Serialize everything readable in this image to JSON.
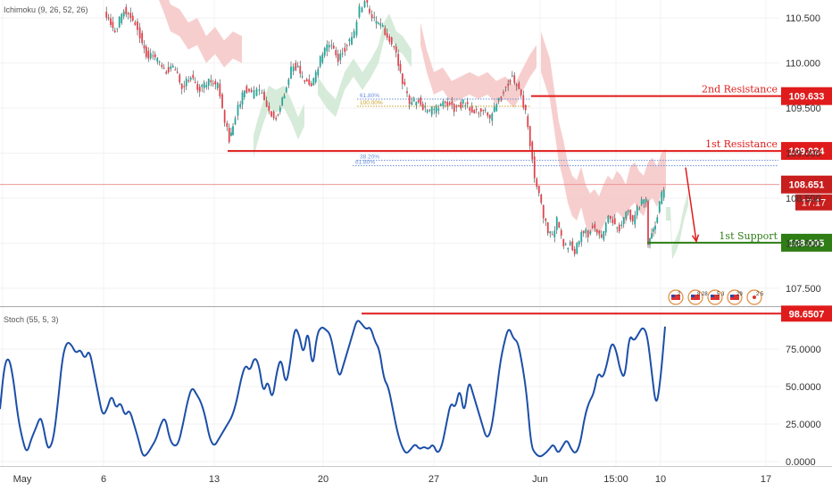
{
  "indicators": {
    "ichimoku_label": "Ichimoku (9, 26, 52, 26)",
    "stoch_label": "Stoch (55, 5, 3)"
  },
  "colors": {
    "up_candle": "#26a69a",
    "down_candle": "#e0454f",
    "candle_wick": "#3a3a3a",
    "cloud_bear": "#f6c6c6",
    "cloud_bull": "#cfe8d2",
    "resistance": "#e01b1b",
    "support": "#2e7d15",
    "stoch_line": "#1c4fa8",
    "price_line": "#e88a8a"
  },
  "chart_data": [
    {
      "type": "line",
      "name": "price",
      "ylim": [
        107.3,
        110.7
      ],
      "y_ticks": [
        107.5,
        108.0,
        108.5,
        109.0,
        109.5,
        110.0,
        110.5
      ],
      "y_tick_labels": [
        "107.500",
        "108.000",
        "108.500",
        "109.000",
        "109.500",
        "110.000",
        "110.500"
      ],
      "x_ticks": [
        "May",
        "6",
        "13",
        "20",
        "27",
        "Jun",
        "15:00",
        "10",
        "17"
      ],
      "x_tick_values": [
        3,
        116,
        240,
        362,
        486,
        605,
        690,
        740,
        858
      ],
      "close_path": [
        [
          118,
          110.55
        ],
        [
          130,
          110.35
        ],
        [
          140,
          110.6
        ],
        [
          150,
          110.5
        ],
        [
          158,
          110.3
        ],
        [
          165,
          110.1
        ],
        [
          175,
          110.05
        ],
        [
          185,
          109.9
        ],
        [
          195,
          109.95
        ],
        [
          205,
          109.75
        ],
        [
          215,
          109.85
        ],
        [
          225,
          109.7
        ],
        [
          235,
          109.8
        ],
        [
          245,
          109.75
        ],
        [
          253,
          109.35
        ],
        [
          258,
          109.15
        ],
        [
          262,
          109.3
        ],
        [
          268,
          109.5
        ],
        [
          275,
          109.7
        ],
        [
          283,
          109.65
        ],
        [
          292,
          109.7
        ],
        [
          300,
          109.55
        ],
        [
          308,
          109.35
        ],
        [
          315,
          109.5
        ],
        [
          322,
          109.75
        ],
        [
          330,
          110.0
        ],
        [
          340,
          109.85
        ],
        [
          350,
          109.75
        ],
        [
          360,
          110.05
        ],
        [
          370,
          110.2
        ],
        [
          380,
          110.05
        ],
        [
          390,
          110.2
        ],
        [
          398,
          110.35
        ],
        [
          404,
          110.6
        ],
        [
          410,
          110.7
        ],
        [
          418,
          110.5
        ],
        [
          425,
          110.45
        ],
        [
          435,
          110.3
        ],
        [
          445,
          110.1
        ],
        [
          452,
          109.8
        ],
        [
          460,
          109.55
        ],
        [
          470,
          109.6
        ],
        [
          480,
          109.45
        ],
        [
          490,
          109.5
        ],
        [
          500,
          109.55
        ],
        [
          510,
          109.5
        ],
        [
          520,
          109.55
        ],
        [
          530,
          109.45
        ],
        [
          540,
          109.5
        ],
        [
          550,
          109.4
        ],
        [
          560,
          109.6
        ],
        [
          568,
          109.75
        ],
        [
          575,
          109.85
        ],
        [
          580,
          109.75
        ],
        [
          585,
          109.6
        ],
        [
          590,
          109.45
        ],
        [
          595,
          109.1
        ],
        [
          600,
          108.75
        ],
        [
          605,
          108.55
        ],
        [
          610,
          108.3
        ],
        [
          615,
          108.15
        ],
        [
          620,
          108.1
        ],
        [
          625,
          108.25
        ],
        [
          630,
          108.05
        ],
        [
          635,
          107.95
        ],
        [
          640,
          108.0
        ],
        [
          645,
          107.92
        ],
        [
          650,
          108.05
        ],
        [
          655,
          108.15
        ],
        [
          660,
          108.1
        ],
        [
          665,
          108.2
        ],
        [
          670,
          108.15
        ],
        [
          675,
          108.05
        ],
        [
          680,
          108.25
        ],
        [
          685,
          108.3
        ],
        [
          690,
          108.2
        ],
        [
          695,
          108.15
        ],
        [
          700,
          108.3
        ],
        [
          705,
          108.35
        ],
        [
          710,
          108.25
        ],
        [
          715,
          108.4
        ],
        [
          720,
          108.45
        ],
        [
          725,
          108.45
        ],
        [
          727,
          108.02
        ],
        [
          731,
          108.1
        ],
        [
          735,
          108.2
        ],
        [
          740,
          108.45
        ],
        [
          745,
          108.62
        ]
      ],
      "annotations": [
        {
          "label": "2nd Resistance",
          "value": "109.633",
          "level": 109.633,
          "x_start": 595,
          "x_end": 875
        },
        {
          "label": "1st Resistance",
          "value": "109.024",
          "level": 109.024,
          "x_start": 255,
          "x_end": 875
        },
        {
          "label": "1st Support",
          "value": "108.005",
          "level": 108.005,
          "x_start": 725,
          "x_end": 875
        }
      ],
      "current_price": {
        "value": "108.651",
        "level": 108.651,
        "countdown": "17:17"
      },
      "fib_levels": [
        {
          "label": "61.80%",
          "level": 109.6,
          "x_start": 400,
          "x_end": 595
        },
        {
          "label": "100.00%",
          "level": 109.52,
          "x_start": 400,
          "x_end": 595
        },
        {
          "label": "38.20%",
          "level": 108.92,
          "x_start": 400,
          "x_end": 872
        },
        {
          "label": "61.80%",
          "level": 108.86,
          "x_start": 395,
          "x_end": 872
        }
      ],
      "projection_arrow": {
        "from": [
          768,
          108.84
        ],
        "to": [
          780,
          108.02
        ]
      }
    },
    {
      "type": "line",
      "name": "stochastic",
      "ylim": [
        -3,
        103
      ],
      "y_ticks": [
        0,
        25,
        50,
        75
      ],
      "y_tick_labels": [
        "0.0000",
        "25.0000",
        "50.0000",
        "75.0000"
      ],
      "x_ticks": [
        "May",
        "6",
        "13",
        "20",
        "27",
        "Jun",
        "15:00",
        "10",
        "17"
      ],
      "x_tick_values": [
        3,
        116,
        240,
        362,
        486,
        605,
        690,
        740,
        858
      ],
      "points": [
        [
          0,
          35
        ],
        [
          5,
          65
        ],
        [
          10,
          70
        ],
        [
          15,
          55
        ],
        [
          20,
          30
        ],
        [
          25,
          15
        ],
        [
          30,
          5
        ],
        [
          35,
          15
        ],
        [
          40,
          22
        ],
        [
          45,
          30
        ],
        [
          48,
          25
        ],
        [
          52,
          12
        ],
        [
          55,
          8
        ],
        [
          60,
          15
        ],
        [
          65,
          40
        ],
        [
          70,
          70
        ],
        [
          75,
          80
        ],
        [
          80,
          78
        ],
        [
          85,
          72
        ],
        [
          90,
          75
        ],
        [
          95,
          68
        ],
        [
          100,
          75
        ],
        [
          105,
          60
        ],
        [
          110,
          45
        ],
        [
          115,
          30
        ],
        [
          120,
          35
        ],
        [
          125,
          45
        ],
        [
          130,
          35
        ],
        [
          135,
          40
        ],
        [
          140,
          30
        ],
        [
          145,
          35
        ],
        [
          150,
          25
        ],
        [
          155,
          15
        ],
        [
          160,
          3
        ],
        [
          165,
          5
        ],
        [
          170,
          10
        ],
        [
          175,
          15
        ],
        [
          180,
          25
        ],
        [
          185,
          30
        ],
        [
          190,
          15
        ],
        [
          195,
          10
        ],
        [
          200,
          12
        ],
        [
          205,
          25
        ],
        [
          210,
          40
        ],
        [
          215,
          50
        ],
        [
          220,
          45
        ],
        [
          225,
          40
        ],
        [
          230,
          30
        ],
        [
          235,
          15
        ],
        [
          240,
          10
        ],
        [
          245,
          15
        ],
        [
          250,
          20
        ],
        [
          255,
          25
        ],
        [
          260,
          30
        ],
        [
          265,
          40
        ],
        [
          270,
          55
        ],
        [
          275,
          65
        ],
        [
          280,
          60
        ],
        [
          285,
          70
        ],
        [
          290,
          65
        ],
        [
          295,
          45
        ],
        [
          300,
          55
        ],
        [
          305,
          40
        ],
        [
          310,
          60
        ],
        [
          315,
          70
        ],
        [
          320,
          50
        ],
        [
          325,
          65
        ],
        [
          330,
          90
        ],
        [
          335,
          85
        ],
        [
          340,
          70
        ],
        [
          345,
          90
        ],
        [
          350,
          60
        ],
        [
          355,
          85
        ],
        [
          360,
          90
        ],
        [
          365,
          88
        ],
        [
          370,
          85
        ],
        [
          375,
          70
        ],
        [
          380,
          55
        ],
        [
          385,
          65
        ],
        [
          390,
          75
        ],
        [
          395,
          85
        ],
        [
          400,
          95
        ],
        [
          405,
          92
        ],
        [
          410,
          88
        ],
        [
          415,
          90
        ],
        [
          420,
          80
        ],
        [
          425,
          75
        ],
        [
          430,
          55
        ],
        [
          435,
          50
        ],
        [
          440,
          35
        ],
        [
          445,
          20
        ],
        [
          450,
          10
        ],
        [
          455,
          5
        ],
        [
          460,
          8
        ],
        [
          465,
          12
        ],
        [
          470,
          8
        ],
        [
          475,
          10
        ],
        [
          480,
          8
        ],
        [
          485,
          12
        ],
        [
          490,
          5
        ],
        [
          495,
          10
        ],
        [
          500,
          25
        ],
        [
          505,
          40
        ],
        [
          510,
          35
        ],
        [
          515,
          50
        ],
        [
          520,
          30
        ],
        [
          525,
          55
        ],
        [
          530,
          45
        ],
        [
          535,
          35
        ],
        [
          540,
          25
        ],
        [
          545,
          15
        ],
        [
          550,
          20
        ],
        [
          555,
          40
        ],
        [
          560,
          65
        ],
        [
          565,
          80
        ],
        [
          570,
          90
        ],
        [
          575,
          82
        ],
        [
          580,
          80
        ],
        [
          585,
          65
        ],
        [
          590,
          45
        ],
        [
          595,
          10
        ],
        [
          600,
          5
        ],
        [
          605,
          3
        ],
        [
          610,
          5
        ],
        [
          615,
          8
        ],
        [
          620,
          12
        ],
        [
          625,
          5
        ],
        [
          630,
          10
        ],
        [
          635,
          15
        ],
        [
          640,
          8
        ],
        [
          645,
          5
        ],
        [
          650,
          12
        ],
        [
          655,
          30
        ],
        [
          660,
          40
        ],
        [
          665,
          45
        ],
        [
          670,
          60
        ],
        [
          675,
          55
        ],
        [
          680,
          65
        ],
        [
          685,
          80
        ],
        [
          690,
          75
        ],
        [
          695,
          60
        ],
        [
          700,
          55
        ],
        [
          705,
          85
        ],
        [
          710,
          80
        ],
        [
          715,
          85
        ],
        [
          720,
          90
        ],
        [
          725,
          85
        ],
        [
          730,
          60
        ],
        [
          735,
          35
        ],
        [
          740,
          55
        ],
        [
          745,
          90
        ]
      ],
      "annotations": [
        {
          "value": "98.6507",
          "level": 98.6507,
          "x_start": 405,
          "x_end": 875
        }
      ]
    }
  ],
  "event_icons": [
    {
      "name": "us-flag-icon",
      "text": "2"
    },
    {
      "name": "us-flag-icon",
      "text": "8 28"
    },
    {
      "name": "us-flag-icon",
      "text": "5 3"
    },
    {
      "name": "us-flag-icon",
      "text": "29"
    },
    {
      "name": "jp-flag-icon",
      "text": "2 5"
    }
  ]
}
